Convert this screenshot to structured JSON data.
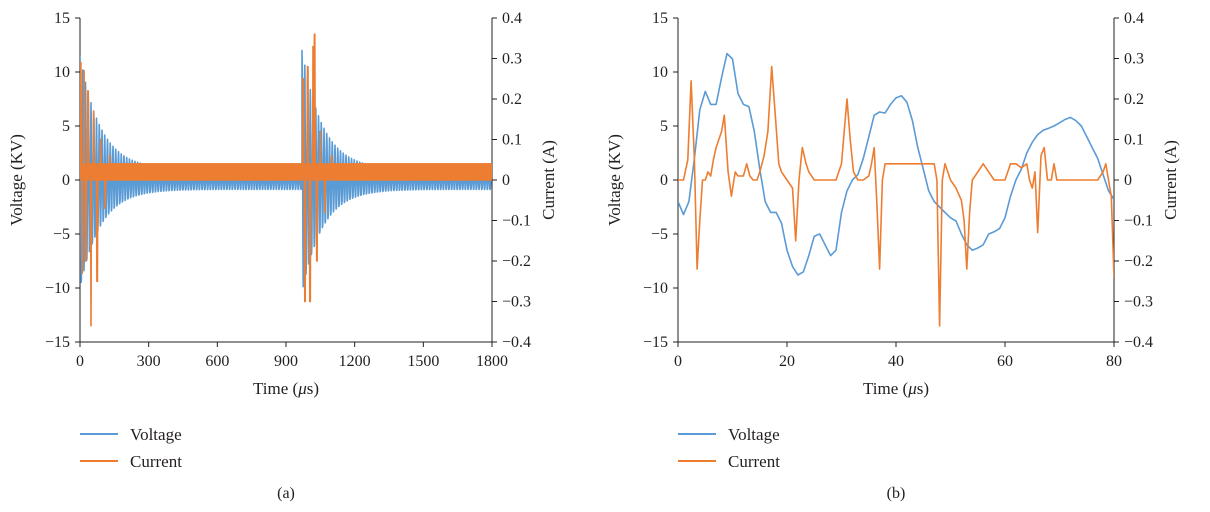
{
  "chart_data": [
    {
      "type": "line",
      "panel_label": "(a)",
      "title": "",
      "xlabel_text": "Time (",
      "xlabel_mu": "μ",
      "xlabel_tail": "s)",
      "ylabel": "Voltage (KV)",
      "y2label": "Current (A)",
      "xlim": [
        0,
        1800
      ],
      "ylim": [
        -15,
        15
      ],
      "y2lim": [
        -0.4,
        0.4
      ],
      "xticks": [
        "0",
        "300",
        "600",
        "900",
        "1200",
        "1500",
        "1800"
      ],
      "yticks": [
        "15",
        "10",
        "5",
        "0",
        "−5",
        "−10",
        "−15"
      ],
      "y2ticks": [
        "0.4",
        "0.3",
        "0.2",
        "0.1",
        "0",
        "−0.1",
        "−0.2",
        "−0.3",
        "−0.4"
      ],
      "legend_position": "bottom-left, below plot",
      "series": [
        {
          "name": "Voltage",
          "color": "#5b9bd5",
          "axis": "left",
          "kind": "decaying-oscillation",
          "bursts": [
            {
              "start": 0,
              "peak": 11.5,
              "decay_tau": 90,
              "period": 12,
              "floor": 1.0,
              "end": 970
            },
            {
              "start": 970,
              "peak": 12.0,
              "decay_tau": 90,
              "period": 12,
              "floor": 1.0,
              "end": 1800
            }
          ]
        },
        {
          "name": "Current",
          "color": "#ed7d31",
          "axis": "right",
          "kind": "dense-spikes",
          "baseline_band": [
            0,
            0.04
          ],
          "spikes": [
            {
              "x": 4,
              "y": 0.29
            },
            {
              "x": 10,
              "y": -0.23
            },
            {
              "x": 18,
              "y": 0.27
            },
            {
              "x": 25,
              "y": -0.2
            },
            {
              "x": 35,
              "y": 0.22
            },
            {
              "x": 48,
              "y": -0.36
            },
            {
              "x": 60,
              "y": 0.17
            },
            {
              "x": 75,
              "y": -0.25
            },
            {
              "x": 90,
              "y": 0.1
            },
            {
              "x": 110,
              "y": -0.07
            },
            {
              "x": 130,
              "y": 0.06
            },
            {
              "x": 975,
              "y": 0.25
            },
            {
              "x": 983,
              "y": -0.3
            },
            {
              "x": 995,
              "y": 0.28
            },
            {
              "x": 1005,
              "y": -0.3
            },
            {
              "x": 1018,
              "y": 0.33
            },
            {
              "x": 1025,
              "y": 0.36
            },
            {
              "x": 1035,
              "y": -0.2
            },
            {
              "x": 1050,
              "y": 0.12
            },
            {
              "x": 1070,
              "y": -0.08
            },
            {
              "x": 1100,
              "y": 0.06
            }
          ]
        }
      ]
    },
    {
      "type": "line",
      "panel_label": "(b)",
      "title": "",
      "xlabel_text": "Time (",
      "xlabel_mu": "μ",
      "xlabel_tail": "s)",
      "ylabel": "Voltage (KV)",
      "y2label": "Current (A)",
      "xlim": [
        0,
        80
      ],
      "ylim": [
        -15,
        15
      ],
      "y2lim": [
        -0.4,
        0.4
      ],
      "xticks": [
        "0",
        "20",
        "40",
        "60",
        "80"
      ],
      "yticks": [
        "15",
        "10",
        "5",
        "0",
        "−5",
        "−10",
        "−15"
      ],
      "y2ticks": [
        "0.4",
        "0.3",
        "0.2",
        "0.1",
        "0",
        "−0.1",
        "−0.2",
        "−0.3",
        "−0.4"
      ],
      "legend_position": "bottom-left, below plot",
      "series": [
        {
          "name": "Voltage",
          "color": "#5b9bd5",
          "axis": "left",
          "x": [
            0,
            1,
            2,
            3,
            4,
            5,
            6,
            7,
            8,
            9,
            10,
            11,
            12,
            13,
            14,
            15,
            16,
            17,
            18,
            19,
            20,
            21,
            22,
            23,
            24,
            25,
            26,
            27,
            28,
            29,
            30,
            31,
            32,
            33,
            34,
            35,
            36,
            37,
            38,
            39,
            40,
            41,
            42,
            43,
            44,
            45,
            46,
            47,
            48,
            49,
            50,
            51,
            52,
            53,
            54,
            55,
            56,
            57,
            58,
            59,
            60,
            61,
            62,
            63,
            64,
            65,
            66,
            67,
            68,
            69,
            70,
            71,
            72,
            73,
            74,
            75,
            76,
            77,
            78,
            79,
            80
          ],
          "y": [
            -2.0,
            -3.2,
            -2.0,
            2.0,
            6.5,
            8.2,
            7.0,
            7.0,
            9.5,
            11.7,
            11.2,
            8.0,
            7.0,
            6.8,
            4.5,
            1.0,
            -2.0,
            -3.0,
            -3.0,
            -4.0,
            -6.5,
            -8.0,
            -8.8,
            -8.5,
            -7.0,
            -5.2,
            -5.0,
            -6.0,
            -7.0,
            -6.5,
            -3.0,
            -1.0,
            0.0,
            0.5,
            2.0,
            4.0,
            6.0,
            6.3,
            6.2,
            7.0,
            7.6,
            7.8,
            7.2,
            5.5,
            3.0,
            1.0,
            -1.0,
            -2.0,
            -2.5,
            -3.0,
            -3.5,
            -3.8,
            -5.0,
            -6.0,
            -6.5,
            -6.3,
            -6.0,
            -5.0,
            -4.8,
            -4.5,
            -3.5,
            -1.5,
            0.0,
            1.0,
            2.5,
            3.5,
            4.2,
            4.6,
            4.8,
            5.0,
            5.3,
            5.6,
            5.8,
            5.5,
            5.0,
            4.0,
            3.0,
            2.0,
            0.5,
            -1.0,
            -1.8
          ]
        },
        {
          "name": "Current",
          "color": "#ed7d31",
          "axis": "right",
          "x": [
            0,
            1,
            1.8,
            2.4,
            3,
            3.5,
            4,
            4.5,
            5,
            5.5,
            6,
            6.5,
            7,
            8,
            8.5,
            9.2,
            9.8,
            10.5,
            11,
            12,
            12.6,
            13.2,
            13.8,
            14.5,
            15,
            15.8,
            16.5,
            17.2,
            17.8,
            18.5,
            19,
            20,
            21,
            21.6,
            22.2,
            22.8,
            23.5,
            24,
            25,
            26,
            27,
            28,
            29,
            30,
            30.5,
            31,
            31.6,
            32.2,
            33,
            34,
            35,
            35.5,
            36,
            36.5,
            37,
            37.5,
            38,
            39,
            40,
            41,
            42,
            43,
            44,
            45,
            46,
            47,
            47.5,
            48,
            48.5,
            49,
            50,
            51,
            52,
            52.5,
            53,
            53.5,
            54,
            55,
            56,
            57,
            58,
            59,
            60,
            61,
            62,
            63,
            64,
            64.5,
            65,
            65.5,
            66,
            66.6,
            67.2,
            67.8,
            68.5,
            69,
            69.5,
            70,
            71,
            72,
            73,
            74,
            75,
            76,
            77,
            78,
            78.5,
            79,
            79.5,
            80
          ],
          "y": [
            0.0,
            0.0,
            0.05,
            0.245,
            0.05,
            -0.22,
            -0.1,
            0.0,
            0.0,
            0.02,
            0.01,
            0.05,
            0.08,
            0.12,
            0.16,
            0.02,
            -0.04,
            0.02,
            0.01,
            0.01,
            0.04,
            0.01,
            0.0,
            0.0,
            0.02,
            0.06,
            0.12,
            0.28,
            0.17,
            0.04,
            0.02,
            0.0,
            -0.02,
            -0.15,
            0.0,
            0.08,
            0.04,
            0.02,
            0.0,
            0.0,
            0.0,
            0.0,
            0.0,
            0.04,
            0.12,
            0.2,
            0.1,
            0.02,
            0.0,
            0.0,
            0.01,
            0.04,
            0.08,
            -0.06,
            -0.22,
            0.0,
            0.04,
            0.04,
            0.04,
            0.04,
            0.04,
            0.04,
            0.04,
            0.04,
            0.04,
            0.04,
            0.0,
            -0.36,
            0.0,
            0.04,
            0.0,
            -0.02,
            -0.05,
            -0.1,
            -0.22,
            -0.08,
            0.0,
            0.02,
            0.04,
            0.02,
            0.0,
            0.0,
            0.0,
            0.04,
            0.04,
            0.03,
            0.04,
            0.0,
            -0.02,
            0.02,
            -0.13,
            0.06,
            0.08,
            0.0,
            0.0,
            0.04,
            0.0,
            0.0,
            0.0,
            0.0,
            0.0,
            0.0,
            0.0,
            0.0,
            0.0,
            0.02,
            0.04,
            0.0,
            -0.04,
            -0.24
          ]
        }
      ]
    }
  ]
}
